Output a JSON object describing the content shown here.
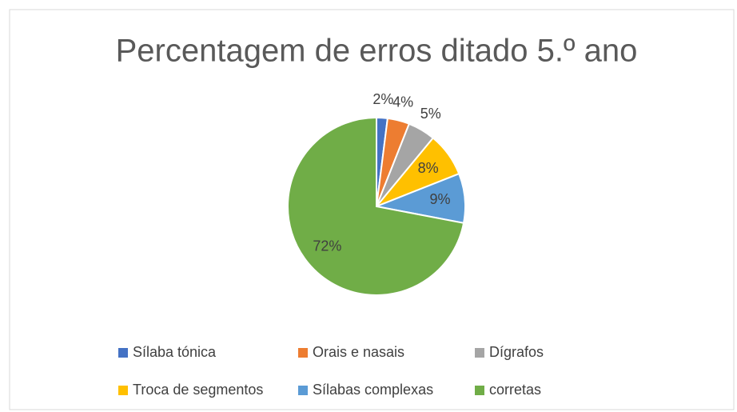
{
  "chart_data": {
    "type": "pie",
    "title": "Percentagem de erros ditado 5.º ano",
    "categories": [
      "Sílaba tónica",
      "Orais e nasais",
      "Dígrafos",
      "Troca de segmentos",
      "Sílabas complexas",
      "corretas"
    ],
    "values": [
      2,
      4,
      5,
      8,
      9,
      72
    ],
    "value_labels": [
      "2%",
      "4%",
      "5%",
      "8%",
      "9%",
      "72%"
    ],
    "colors": [
      "#4472c4",
      "#ed7d31",
      "#a5a5a5",
      "#ffc000",
      "#5b9bd5",
      "#70ad47"
    ],
    "legend": "bottom"
  }
}
